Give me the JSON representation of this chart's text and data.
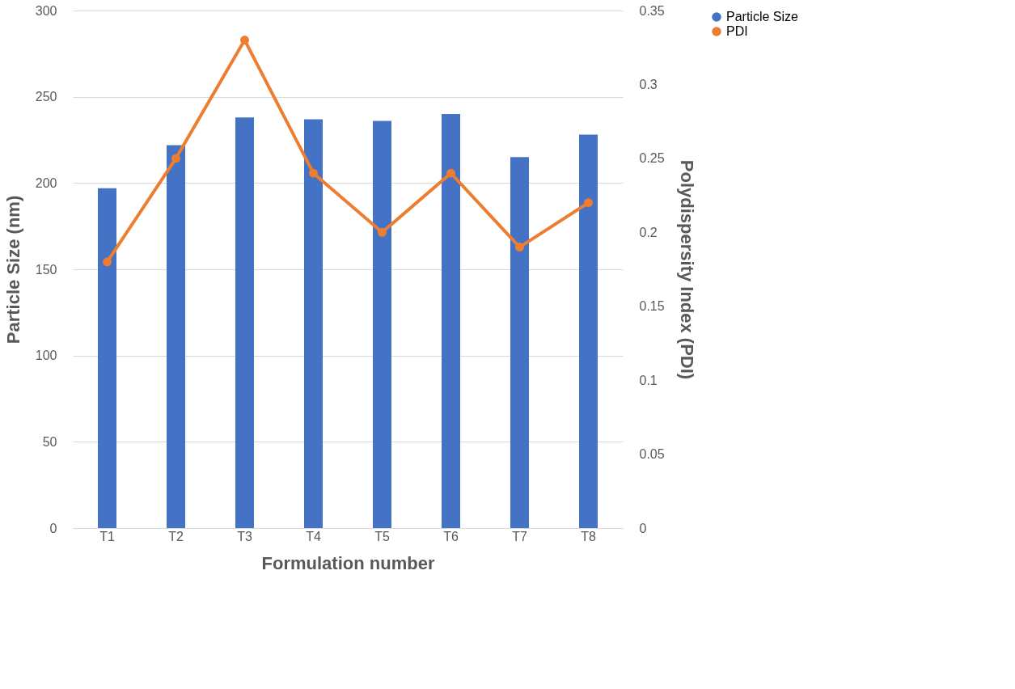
{
  "chart_data": {
    "type": "bar",
    "xlabel": "Formulation number",
    "ylabel": "Particle Size (nm)",
    "y2label": "Polydispersity Index (PDI)",
    "categories": [
      "T1",
      "T2",
      "T3",
      "T4",
      "T5",
      "T6",
      "T7",
      "T8"
    ],
    "series": [
      {
        "name": "Particle Size",
        "color": "#4472c4",
        "values": [
          197,
          222,
          238,
          237,
          236,
          240,
          215,
          228
        ]
      },
      {
        "name": "PDI",
        "type": "line",
        "axis": "y2",
        "color": "#ed7d31",
        "marker": "circle",
        "values": [
          0.18,
          0.25,
          0.33,
          0.24,
          0.2,
          0.24,
          0.19,
          0.22
        ]
      }
    ],
    "ylim": [
      0,
      300
    ],
    "yticks": [
      0,
      50,
      100,
      150,
      200,
      250,
      300
    ],
    "y2lim": [
      0,
      0.35
    ],
    "y2ticks": [
      0,
      0.05,
      0.1,
      0.15,
      0.2,
      0.25,
      0.3,
      0.35
    ],
    "grid": "y",
    "legend": "right"
  }
}
